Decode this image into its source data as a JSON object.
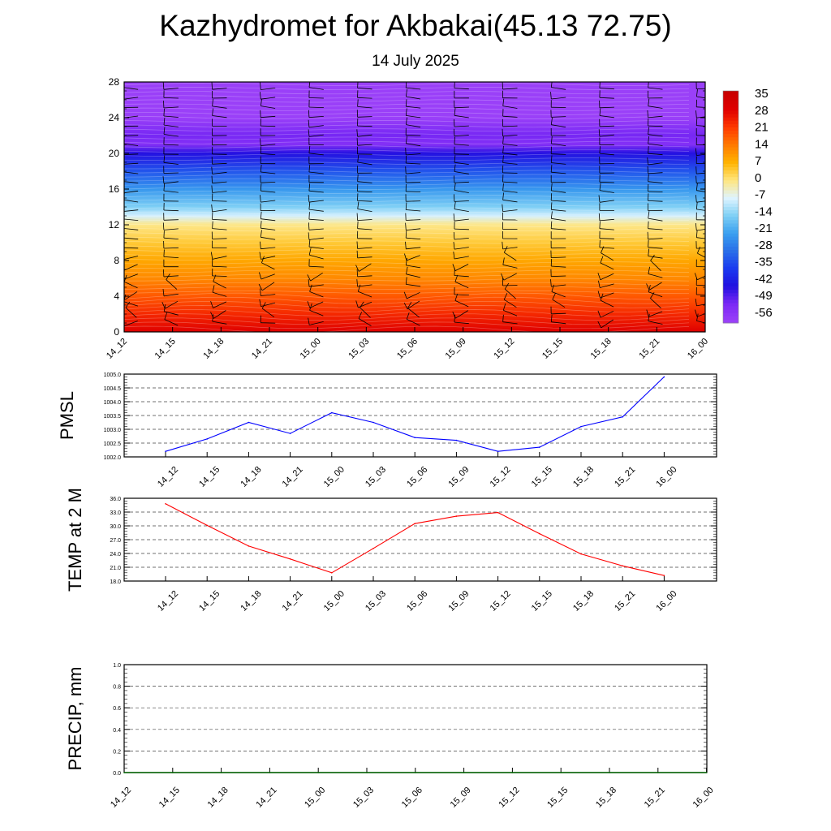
{
  "header": {
    "title": "Kazhydromet for Akbakai(45.13 72.75)",
    "subtitle": "14 July 2025"
  },
  "chart_data": [
    {
      "type": "heatmap",
      "title": "",
      "x_tick_labels": [
        "14_12",
        "14_15",
        "14_18",
        "14_21",
        "15_00",
        "15_03",
        "15_06",
        "15_09",
        "15_12",
        "15_15",
        "15_18",
        "15_21",
        "16_00"
      ],
      "y_ticks": [
        0,
        4,
        8,
        12,
        16,
        20,
        24,
        28
      ],
      "ylim": [
        0,
        28
      ],
      "colorbar_labels": [
        "35",
        "28",
        "21",
        "14",
        "7",
        "0",
        "-7",
        "-14",
        "-21",
        "-28",
        "-35",
        "-42",
        "-49",
        "-56"
      ],
      "colorbar_range": [
        -63,
        37
      ],
      "temperature_profile": {
        "heights": [
          0,
          2,
          4,
          6,
          8,
          10,
          12,
          13,
          14,
          16,
          18,
          20,
          21,
          22,
          24,
          26,
          28
        ],
        "values": [
          30,
          24,
          18,
          12,
          8,
          3,
          -2,
          -10,
          -17,
          -26,
          -36,
          -48,
          -58,
          -55,
          -63,
          -63,
          -63
        ]
      },
      "wind_barbs": true,
      "color_stops": [
        "#c80000",
        "#e00000",
        "#ff3a00",
        "#ff7a00",
        "#ffb400",
        "#ffe680",
        "#dff4ff",
        "#7fd0f5",
        "#3aa0f0",
        "#2a6fe8",
        "#1a3af0",
        "#2010e0",
        "#7a28f5",
        "#9a40f8"
      ]
    },
    {
      "type": "line",
      "ylabel": "PMSL",
      "x": [
        "14_12",
        "14_15",
        "14_18",
        "14_21",
        "15_00",
        "15_03",
        "15_06",
        "15_09",
        "15_12",
        "15_15",
        "15_18",
        "15_21",
        "16_00"
      ],
      "series": [
        {
          "values": [
            1002.2,
            1002.65,
            1003.25,
            1002.85,
            1003.6,
            1003.25,
            1002.7,
            1002.6,
            1002.2,
            1002.35,
            1003.1,
            1003.45,
            1004.9
          ]
        }
      ],
      "ylim": [
        1002.0,
        1005.0
      ],
      "y_ticks": [
        "1002.0",
        "1002.5",
        "1003.0",
        "1003.5",
        "1004.0",
        "1004.5",
        "1005.0"
      ],
      "color": "#0000ff",
      "grid": true
    },
    {
      "type": "line",
      "ylabel": "TEMP at 2 M",
      "x": [
        "14_12",
        "14_15",
        "14_18",
        "14_21",
        "15_00",
        "15_03",
        "15_06",
        "15_09",
        "15_12",
        "15_15",
        "15_18",
        "15_21",
        "16_00"
      ],
      "series": [
        {
          "values": [
            34.8,
            30.1,
            25.6,
            22.8,
            19.8,
            25.1,
            30.5,
            32.1,
            32.9,
            28.3,
            23.9,
            21.3,
            19.2
          ]
        }
      ],
      "ylim": [
        18.0,
        36.0
      ],
      "y_ticks": [
        "18.0",
        "21.0",
        "24.0",
        "27.0",
        "30.0",
        "33.0",
        "36.0"
      ],
      "color": "#ff0000",
      "grid": true
    },
    {
      "type": "line",
      "ylabel": "PRECIP, mm",
      "x": [
        "14_12",
        "14_15",
        "14_18",
        "14_21",
        "15_00",
        "15_03",
        "15_06",
        "15_09",
        "15_12",
        "15_15",
        "15_18",
        "15_21",
        "16_00"
      ],
      "series": [
        {
          "values": [
            0,
            0,
            0,
            0,
            0,
            0,
            0,
            0,
            0,
            0,
            0,
            0,
            0
          ]
        }
      ],
      "ylim": [
        0.0,
        1.0
      ],
      "y_ticks": [
        "0.0",
        "0.2",
        "0.4",
        "0.6",
        "0.8",
        "1.0"
      ],
      "color": "#006400",
      "grid": true
    }
  ]
}
